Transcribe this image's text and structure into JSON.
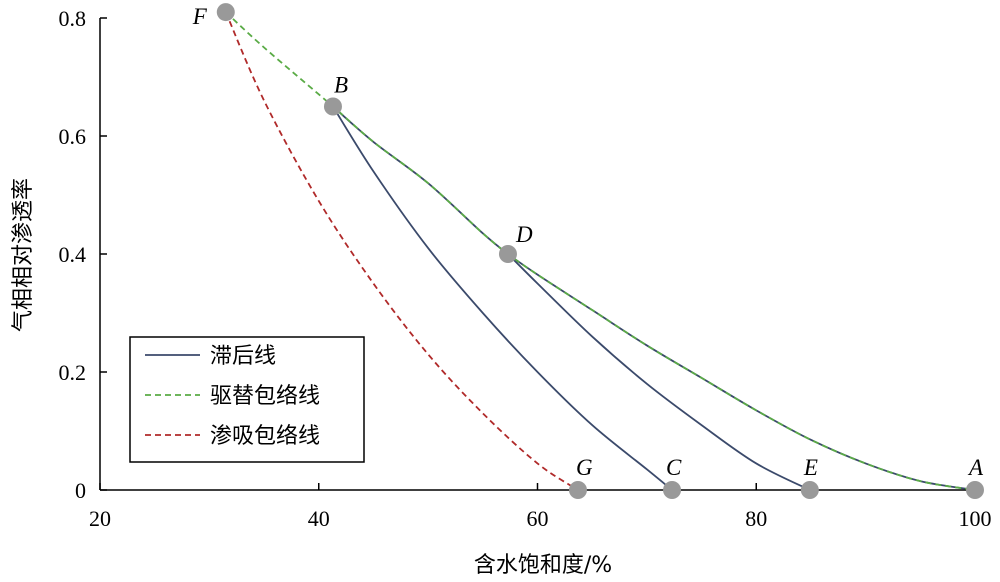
{
  "chart_data": {
    "type": "line",
    "title": "",
    "xlabel": "含水饱和度/%",
    "ylabel": "气相相对渗透率",
    "xlim": [
      20,
      100
    ],
    "ylim": [
      0,
      0.8
    ],
    "xticks": [
      {
        "value": 20,
        "label": "20"
      },
      {
        "value": 40,
        "label": "40"
      },
      {
        "value": 60,
        "label": "60"
      },
      {
        "value": 80,
        "label": "80"
      },
      {
        "value": 100,
        "label": "100"
      }
    ],
    "yticks": [
      {
        "value": 0,
        "label": "0"
      },
      {
        "value": 0.2,
        "label": "0.2"
      },
      {
        "value": 0.4,
        "label": "0.4"
      },
      {
        "value": 0.6,
        "label": "0.6"
      },
      {
        "value": 0.8,
        "label": "0.8"
      }
    ],
    "grid": false,
    "legend_position": "bottom-left",
    "points": [
      {
        "label": "F",
        "x": 31.5,
        "y": 0.81
      },
      {
        "label": "B",
        "x": 41.3,
        "y": 0.65
      },
      {
        "label": "D",
        "x": 57.3,
        "y": 0.4
      },
      {
        "label": "G",
        "x": 63.7,
        "y": 0.0
      },
      {
        "label": "C",
        "x": 72.3,
        "y": 0.0
      },
      {
        "label": "E",
        "x": 84.9,
        "y": 0.0
      },
      {
        "label": "A",
        "x": 100.0,
        "y": 0.0
      }
    ],
    "series": [
      {
        "name": "滞后线",
        "style": "solid",
        "color": "#3b4a6b",
        "segments": [
          [
            [
              41.3,
              0.65
            ],
            [
              45,
              0.54
            ],
            [
              50,
              0.41
            ],
            [
              55,
              0.3
            ],
            [
              60,
              0.2
            ],
            [
              65,
              0.11
            ],
            [
              70,
              0.035
            ],
            [
              72.3,
              0.0
            ]
          ],
          [
            [
              57.3,
              0.4
            ],
            [
              60,
              0.35
            ],
            [
              65,
              0.26
            ],
            [
              70,
              0.18
            ],
            [
              75,
              0.11
            ],
            [
              80,
              0.045
            ],
            [
              84.9,
              0.0
            ]
          ],
          [
            [
              41.3,
              0.65
            ],
            [
              45,
              0.59
            ],
            [
              50,
              0.52
            ],
            [
              55,
              0.435
            ],
            [
              57.3,
              0.4
            ],
            [
              60,
              0.365
            ],
            [
              65,
              0.305
            ],
            [
              70,
              0.245
            ],
            [
              75,
              0.19
            ],
            [
              80,
              0.135
            ],
            [
              85,
              0.085
            ],
            [
              90,
              0.045
            ],
            [
              95,
              0.015
            ],
            [
              100,
              0.0
            ]
          ]
        ]
      },
      {
        "name": "驱替包络线",
        "style": "dashed",
        "color": "#5aab46",
        "segments": [
          [
            [
              31.5,
              0.81
            ],
            [
              35,
              0.75
            ],
            [
              41.3,
              0.65
            ],
            [
              45,
              0.59
            ],
            [
              50,
              0.52
            ],
            [
              55,
              0.435
            ],
            [
              57.3,
              0.4
            ],
            [
              60,
              0.365
            ],
            [
              65,
              0.305
            ],
            [
              70,
              0.245
            ],
            [
              75,
              0.19
            ],
            [
              80,
              0.135
            ],
            [
              85,
              0.085
            ],
            [
              90,
              0.045
            ],
            [
              95,
              0.015
            ],
            [
              100,
              0.0
            ]
          ]
        ]
      },
      {
        "name": "渗吸包络线",
        "style": "dashed",
        "color": "#b02a2a",
        "segments": [
          [
            [
              31.5,
              0.81
            ],
            [
              35,
              0.66
            ],
            [
              40,
              0.49
            ],
            [
              45,
              0.35
            ],
            [
              50,
              0.23
            ],
            [
              55,
              0.13
            ],
            [
              60,
              0.045
            ],
            [
              63.7,
              0.0
            ]
          ]
        ]
      }
    ]
  }
}
